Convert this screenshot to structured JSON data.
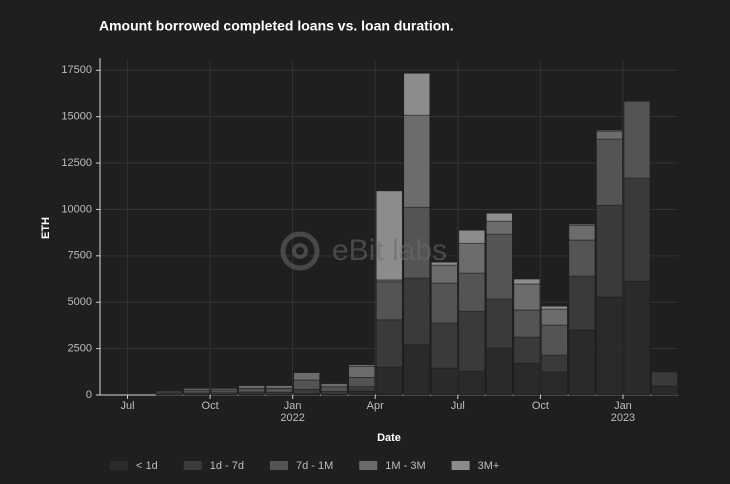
{
  "chart_data": {
    "type": "stacked_bar",
    "title": "Amount borrowed completed loans vs. loan duration.",
    "watermark": "eBit labs",
    "x_label": "Date",
    "y_label": "ETH",
    "x": [
      "2021-08",
      "2021-09",
      "2021-10",
      "2021-11",
      "2021-12",
      "2022-01",
      "2022-02",
      "2022-03",
      "2022-04",
      "2022-05",
      "2022-06",
      "2022-07",
      "2022-08",
      "2022-09",
      "2022-10",
      "2022-11",
      "2022-12",
      "2023-01",
      "2023-02"
    ],
    "series": [
      {
        "name": "< 1d",
        "color": "#2a2a2a",
        "values": [
          20,
          30,
          30,
          40,
          40,
          60,
          40,
          200,
          1500,
          2700,
          1450,
          1290,
          2530,
          1720,
          1240,
          3500,
          5280,
          6140,
          480
        ]
      },
      {
        "name": "1d - 7d",
        "color": "#3a3a3a",
        "values": [
          50,
          80,
          90,
          120,
          110,
          250,
          150,
          250,
          2550,
          3600,
          2430,
          3230,
          2640,
          1400,
          910,
          2910,
          4950,
          5550,
          760
        ]
      },
      {
        "name": "7d - 1M",
        "color": "#545454",
        "values": [
          80,
          150,
          150,
          200,
          210,
          500,
          250,
          500,
          2050,
          3820,
          2150,
          2050,
          3500,
          1460,
          1620,
          1940,
          3560,
          4140,
          0
        ]
      },
      {
        "name": "1M - 3M",
        "color": "#6c6c6c",
        "values": [
          50,
          100,
          90,
          150,
          150,
          400,
          180,
          600,
          100,
          4960,
          970,
          1610,
          700,
          1400,
          860,
          800,
          430,
          0,
          0
        ]
      },
      {
        "name": "3M+",
        "color": "#8c8c8c",
        "values": [
          0,
          20,
          20,
          30,
          30,
          30,
          30,
          70,
          4800,
          2260,
          160,
          700,
          430,
          270,
          160,
          60,
          50,
          0,
          0
        ]
      }
    ],
    "xlim": [
      "2021-06",
      "2023-03"
    ],
    "xticks": [
      {
        "value": "2021-07",
        "label": "Jul"
      },
      {
        "value": "2021-10",
        "label": "Oct"
      },
      {
        "value": "2022-01",
        "label": "Jan",
        "year": "2022"
      },
      {
        "value": "2022-04",
        "label": "Apr"
      },
      {
        "value": "2022-07",
        "label": "Jul"
      },
      {
        "value": "2022-10",
        "label": "Oct"
      },
      {
        "value": "2023-01",
        "label": "Jan",
        "year": "2023"
      }
    ],
    "ylim": [
      0,
      18000
    ],
    "yticks": [
      0,
      2500,
      5000,
      7500,
      10000,
      12500,
      15000,
      17500
    ],
    "grid": true,
    "legend": "bottom"
  }
}
